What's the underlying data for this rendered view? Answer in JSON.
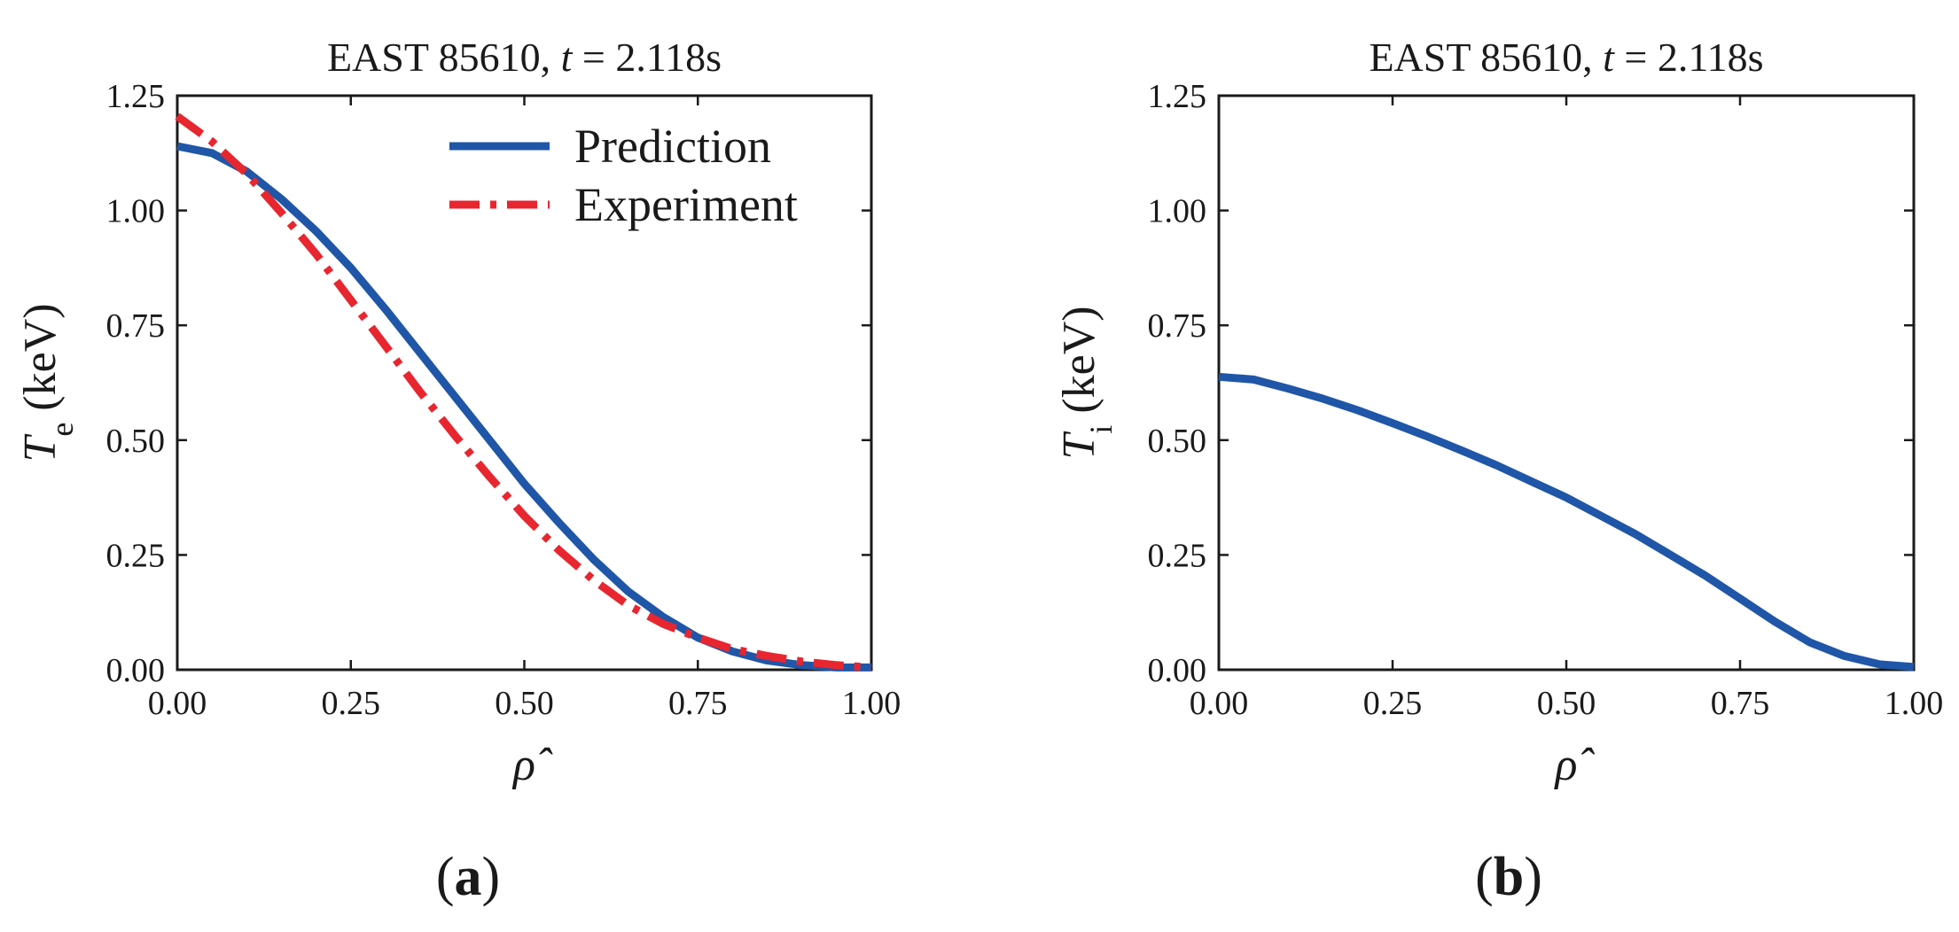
{
  "chart_data": [
    {
      "type": "line",
      "title": "EAST 85610, t = 2.118s",
      "title_parts": {
        "prefix": "EAST 85610, ",
        "var": "t",
        "suffix": " = 2.118s"
      },
      "xlabel": "ρ̂",
      "ylabel": "T_e (keV)",
      "ylabel_parts": {
        "main": "T",
        "sub": "e",
        "unit": " (keV)"
      },
      "xlim": [
        0,
        1
      ],
      "ylim": [
        0,
        1.25
      ],
      "xticks": [
        "0.00",
        "0.25",
        "0.50",
        "0.75",
        "1.00"
      ],
      "yticks": [
        "0.00",
        "0.25",
        "0.50",
        "0.75",
        "1.00",
        "1.25"
      ],
      "grid": false,
      "legend_position": "top-right",
      "panel_label": "a",
      "series": [
        {
          "name": "Prediction",
          "color": "#1f56a8",
          "style": "solid",
          "x": [
            0,
            0.05,
            0.1,
            0.15,
            0.2,
            0.25,
            0.3,
            0.35,
            0.4,
            0.45,
            0.5,
            0.55,
            0.6,
            0.65,
            0.7,
            0.75,
            0.8,
            0.85,
            0.9,
            0.95,
            1.0
          ],
          "y": [
            1.14,
            1.125,
            1.085,
            1.025,
            0.955,
            0.875,
            0.785,
            0.69,
            0.595,
            0.5,
            0.405,
            0.32,
            0.24,
            0.17,
            0.115,
            0.07,
            0.04,
            0.02,
            0.01,
            0.005,
            0.005
          ]
        },
        {
          "name": "Experiment",
          "color": "#e8262f",
          "style": "dashdot",
          "x": [
            0,
            0.05,
            0.1,
            0.15,
            0.2,
            0.25,
            0.3,
            0.35,
            0.4,
            0.45,
            0.5,
            0.55,
            0.6,
            0.65,
            0.7,
            0.75,
            0.8,
            0.85,
            0.9,
            0.95,
            1.0
          ],
          "y": [
            1.205,
            1.15,
            1.08,
            0.995,
            0.905,
            0.805,
            0.705,
            0.605,
            0.51,
            0.42,
            0.335,
            0.26,
            0.195,
            0.14,
            0.1,
            0.07,
            0.045,
            0.03,
            0.018,
            0.01,
            0.005
          ]
        }
      ]
    },
    {
      "type": "line",
      "title": "EAST 85610, t = 2.118s",
      "title_parts": {
        "prefix": "EAST 85610, ",
        "var": "t",
        "suffix": " = 2.118s"
      },
      "xlabel": "ρ̂",
      "ylabel": "T_i (keV)",
      "ylabel_parts": {
        "main": "T",
        "sub": "i",
        "unit": " (keV)"
      },
      "xlim": [
        0,
        1
      ],
      "ylim": [
        0,
        1.25
      ],
      "xticks": [
        "0.00",
        "0.25",
        "0.50",
        "0.75",
        "1.00"
      ],
      "yticks": [
        "0.00",
        "0.25",
        "0.50",
        "0.75",
        "1.00",
        "1.25"
      ],
      "grid": false,
      "panel_label": "b",
      "series": [
        {
          "color": "#1f56a8",
          "style": "solid",
          "x": [
            0,
            0.05,
            0.1,
            0.15,
            0.2,
            0.25,
            0.3,
            0.35,
            0.4,
            0.45,
            0.5,
            0.55,
            0.6,
            0.65,
            0.7,
            0.75,
            0.8,
            0.85,
            0.9,
            0.95,
            1.0
          ],
          "y": [
            0.638,
            0.632,
            0.612,
            0.59,
            0.565,
            0.537,
            0.508,
            0.477,
            0.445,
            0.41,
            0.375,
            0.335,
            0.295,
            0.25,
            0.205,
            0.155,
            0.105,
            0.06,
            0.03,
            0.012,
            0.006
          ]
        }
      ]
    }
  ]
}
